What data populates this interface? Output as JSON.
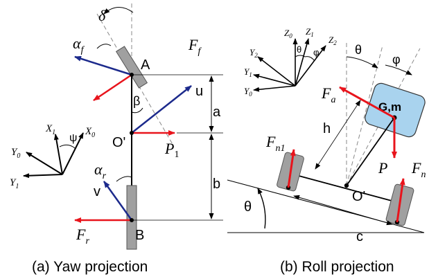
{
  "yaw": {
    "caption": "(a) Yaw projection",
    "labels": {
      "delta": "δ",
      "alpha_f": "α",
      "alpha_f_sub": "f",
      "A": "A",
      "Ff": "F",
      "Ff_sub": "f",
      "beta": "β",
      "u": "u",
      "a": "a",
      "O": "O'",
      "P": "P",
      "P_sub": "1",
      "b": "b",
      "alpha_r": "α",
      "alpha_r_sub": "r",
      "v": "v",
      "Fr": "F",
      "Fr_sub": "r",
      "B": "B",
      "X1": "X",
      "X1_sub": "1",
      "psi": "ψ",
      "X0": "X",
      "X0_sub": "0",
      "Y0": "Y",
      "Y0_sub": "0",
      "Y1": "Y",
      "Y1_sub": "1"
    }
  },
  "roll": {
    "caption": "(b) Roll projection",
    "labels": {
      "Z0": "Z",
      "Z0_sub": "0",
      "Z1": "Z",
      "Z1_sub": "1",
      "Z2": "Z",
      "Z2_sub": "2",
      "theta_small": "θ",
      "phi_small": "φ",
      "Y2": "Y",
      "Y2_sub": "2",
      "Y1": "Y",
      "Y1_sub": "1",
      "Y0": "Y",
      "Y0_sub": "0",
      "theta_top": "θ",
      "phi_top": "φ",
      "Fa": "F",
      "Fa_sub": "a",
      "Gm": "G,m",
      "h": "h",
      "Fn1": "F",
      "Fn1_sub": "n1",
      "O": "O'",
      "P": "P",
      "Fn": "F",
      "Fn_sub": "n",
      "theta_ground": "θ",
      "c": "c"
    }
  },
  "colors": {
    "force": "#e8141c",
    "velocity": "#1c2a8c",
    "body_fill": "#a9d3ee",
    "wheel_fill": "#a0a0a0",
    "line": "#000000"
  }
}
